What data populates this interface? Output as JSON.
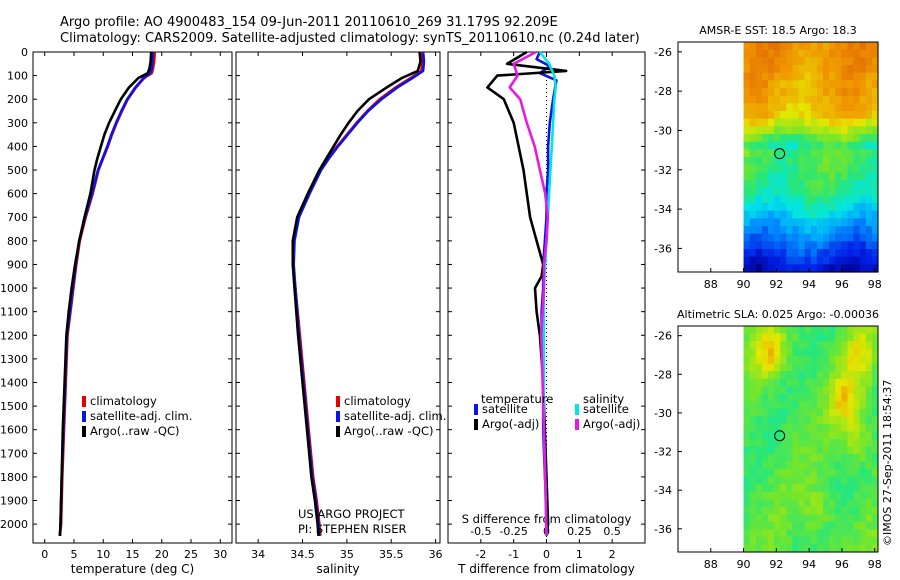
{
  "header": {
    "line1": "Argo profile: AO 4900483_154 09-Jun-2011 20110610_269 31.179S 92.209E",
    "line2": "Climatology: CARS2009. Satellite-adjusted climatology: synTS_20110610.nc (0.24d later)"
  },
  "colors": {
    "climatology": "#e60000",
    "satellite_adj": "#0a14e6",
    "argo": "#000000",
    "salinity_sat": "#00e6e6",
    "salinity_argo": "#e619e6"
  },
  "chart_data": [
    {
      "id": "temperature",
      "type": "line",
      "xlabel": "temperature (deg C)",
      "ylabel": "",
      "xlim": [
        -2,
        32
      ],
      "ylim": [
        2080,
        0
      ],
      "xticks": [
        0,
        5,
        10,
        15,
        20,
        25,
        30
      ],
      "xtick_labels": [
        "0",
        "5",
        "10",
        "15",
        "20",
        "25",
        "30"
      ],
      "yticks": [
        0,
        100,
        200,
        300,
        400,
        500,
        600,
        700,
        800,
        900,
        1000,
        1100,
        1200,
        1300,
        1400,
        1500,
        1600,
        1700,
        1800,
        1900,
        2000
      ],
      "ytick_labels": [
        "0",
        "100",
        "200",
        "300",
        "400",
        "500",
        "600",
        "700",
        "800",
        "900",
        "1000",
        "1100",
        "1200",
        "1300",
        "1400",
        "1500",
        "1600",
        "1700",
        "1800",
        "1900",
        "2000"
      ],
      "legend": [
        "climatology",
        "satellite-adj. clim.",
        "Argo(..raw -QC)"
      ],
      "series": [
        {
          "name": "climatology",
          "color_key": "climatology",
          "x": [
            18.8,
            18.7,
            18.5,
            18.3,
            17.0,
            15.6,
            14.2,
            13.2,
            12.3,
            11.5,
            10.8,
            10.0,
            9.2,
            8.2,
            7.0,
            6.0,
            5.4,
            4.9,
            4.4,
            3.9,
            3.6,
            3.3,
            3.0,
            2.8,
            2.6
          ],
          "y": [
            0,
            40,
            70,
            90,
            110,
            150,
            200,
            250,
            300,
            350,
            400,
            450,
            500,
            600,
            700,
            800,
            900,
            1000,
            1100,
            1200,
            1400,
            1600,
            1800,
            2000,
            2050
          ]
        },
        {
          "name": "satellite-adj. clim.",
          "color_key": "satellite_adj",
          "x": [
            18.5,
            18.4,
            18.3,
            18.0,
            16.9,
            15.5,
            14.1,
            13.1,
            12.2,
            11.4,
            10.7,
            9.9,
            9.1,
            8.1,
            6.9,
            5.9,
            5.3,
            4.8,
            4.3,
            3.8,
            3.5,
            3.2,
            2.9,
            2.7,
            2.6
          ],
          "y": [
            0,
            40,
            70,
            90,
            110,
            150,
            200,
            250,
            300,
            350,
            400,
            450,
            500,
            600,
            700,
            800,
            900,
            1000,
            1100,
            1200,
            1400,
            1600,
            1800,
            2000,
            2050
          ]
        },
        {
          "name": "Argo(..raw -QC)",
          "color_key": "argo",
          "x": [
            18.2,
            18.1,
            17.9,
            17.6,
            16.0,
            14.4,
            13.0,
            12.0,
            11.0,
            10.2,
            9.6,
            9.0,
            8.5,
            7.8,
            6.8,
            5.9,
            5.2,
            4.6,
            4.1,
            3.7,
            3.4,
            3.1,
            2.9,
            2.7,
            2.6
          ],
          "y": [
            0,
            40,
            70,
            90,
            110,
            150,
            200,
            250,
            300,
            350,
            400,
            450,
            500,
            600,
            700,
            800,
            900,
            1000,
            1100,
            1200,
            1400,
            1600,
            1800,
            2000,
            2050
          ]
        }
      ]
    },
    {
      "id": "salinity",
      "type": "line",
      "xlabel": "salinity",
      "ylabel": "",
      "xlim": [
        33.75,
        36.05
      ],
      "ylim": [
        2080,
        0
      ],
      "xticks": [
        34,
        34.5,
        35,
        35.5,
        36
      ],
      "xtick_labels": [
        "34",
        "34.5",
        "35",
        "35.5",
        "36"
      ],
      "legend": [
        "climatology",
        "satellite-adj. clim.",
        "Argo(..raw -QC)"
      ],
      "annotations": [
        "US ARGO PROJECT",
        "PI: STEPHEN RISER"
      ],
      "series": [
        {
          "name": "climatology",
          "color_key": "climatology",
          "x": [
            35.84,
            35.85,
            35.84,
            35.72,
            35.55,
            35.37,
            35.23,
            35.11,
            35.0,
            34.89,
            34.79,
            34.7,
            34.57,
            34.45,
            34.4,
            34.39,
            34.42,
            34.47,
            34.52,
            34.57,
            34.62,
            34.66,
            34.69,
            34.7
          ],
          "y": [
            0,
            40,
            80,
            110,
            150,
            200,
            250,
            300,
            350,
            400,
            450,
            500,
            600,
            700,
            800,
            900,
            1000,
            1200,
            1400,
            1600,
            1800,
            1900,
            2000,
            2050
          ]
        },
        {
          "name": "satellite-adj. clim.",
          "color_key": "satellite_adj",
          "x": [
            35.86,
            35.87,
            35.86,
            35.74,
            35.57,
            35.39,
            35.24,
            35.12,
            35.01,
            34.9,
            34.8,
            34.71,
            34.58,
            34.46,
            34.41,
            34.4,
            34.42,
            34.46,
            34.51,
            34.56,
            34.61,
            34.65,
            34.68,
            34.69
          ],
          "y": [
            0,
            40,
            80,
            110,
            150,
            200,
            250,
            300,
            350,
            400,
            450,
            500,
            600,
            700,
            800,
            900,
            1000,
            1200,
            1400,
            1600,
            1800,
            1900,
            2000,
            2050
          ]
        },
        {
          "name": "Argo(..raw -QC)",
          "color_key": "argo",
          "x": [
            35.82,
            35.83,
            35.8,
            35.62,
            35.45,
            35.25,
            35.12,
            35.02,
            34.93,
            34.85,
            34.77,
            34.69,
            34.56,
            34.44,
            34.39,
            34.39,
            34.41,
            34.45,
            34.5,
            34.55,
            34.6,
            34.64,
            34.67,
            34.68
          ],
          "y": [
            0,
            40,
            80,
            110,
            150,
            200,
            250,
            300,
            350,
            400,
            450,
            500,
            600,
            700,
            800,
            900,
            1000,
            1200,
            1400,
            1600,
            1800,
            1900,
            2000,
            2050
          ]
        }
      ]
    },
    {
      "id": "difference",
      "type": "line",
      "xlabel": "T difference from climatology",
      "top_label": "S difference from climatology",
      "xlim": [
        -3,
        3
      ],
      "ylim": [
        2080,
        0
      ],
      "xticks": [
        -2,
        -1,
        0,
        1,
        2
      ],
      "xtick_labels": [
        "-2",
        "-1",
        "0",
        "1",
        "2"
      ],
      "top_xtick_labels": [
        "-0.5",
        "-0.25",
        "0",
        "0.25",
        "0.5"
      ],
      "legend_headers": [
        "temperature",
        "salinity"
      ],
      "legend": [
        "satellite",
        "Argo(-adj)",
        "satellite",
        "Argo(-adj)"
      ],
      "series": [
        {
          "name": "temperature satellite",
          "color_key": "satellite_adj",
          "x": [
            -0.2,
            -0.3,
            0.1,
            -0.2,
            0.3,
            0.2,
            0.1,
            0.05,
            0.05,
            0.0,
            0.0,
            -0.05,
            -0.1,
            -0.1,
            -0.15,
            -0.15,
            -0.1,
            -0.1,
            -0.1,
            -0.05,
            0.0,
            0.0,
            0.0,
            0.0
          ],
          "y": [
            0,
            30,
            60,
            90,
            120,
            200,
            300,
            400,
            500,
            600,
            700,
            800,
            900,
            1000,
            1100,
            1200,
            1300,
            1400,
            1600,
            1800,
            1900,
            2000,
            2030,
            2050
          ]
        },
        {
          "name": "temperature Argo(-adj)",
          "color_key": "argo",
          "x": [
            -0.6,
            -1.2,
            0.6,
            -1.5,
            -1.8,
            -1.3,
            -1.0,
            -0.85,
            -0.7,
            -0.6,
            -0.5,
            -0.3,
            -0.2,
            -0.1,
            -0.15,
            -0.35,
            -0.3,
            -0.2,
            -0.1,
            -0.05,
            0.0,
            0.05,
            0.0
          ],
          "y": [
            0,
            50,
            80,
            100,
            150,
            200,
            300,
            400,
            500,
            600,
            700,
            800,
            850,
            900,
            950,
            1000,
            1100,
            1200,
            1400,
            1600,
            1800,
            2000,
            2050
          ]
        },
        {
          "name": "salinity satellite",
          "color_key": "salinity_sat",
          "x": [
            -0.05,
            0.02,
            0.06,
            0.07,
            0.06,
            0.05,
            0.04,
            0.03,
            0.02,
            0.01,
            0.0,
            -0.01,
            -0.02,
            -0.02,
            -0.02,
            -0.02,
            -0.02,
            -0.01,
            0.0
          ],
          "y": [
            0,
            50,
            100,
            150,
            200,
            300,
            400,
            500,
            600,
            700,
            800,
            900,
            1000,
            1100,
            1200,
            1400,
            1600,
            1800,
            2050
          ]
        },
        {
          "name": "salinity Argo(-adj)",
          "color_key": "salinity_argo",
          "x": [
            -0.08,
            -0.25,
            -0.22,
            -0.28,
            -0.2,
            -0.15,
            -0.09,
            -0.05,
            -0.01,
            0.01,
            0.0,
            -0.02,
            -0.02,
            -0.03,
            -0.04,
            -0.03,
            -0.02,
            -0.01,
            0.0
          ],
          "y": [
            0,
            50,
            100,
            150,
            200,
            300,
            400,
            500,
            600,
            700,
            800,
            900,
            1000,
            1100,
            1200,
            1400,
            1600,
            1800,
            2050
          ]
        }
      ]
    },
    {
      "id": "sst_map",
      "type": "heatmap",
      "title": "AMSR-E SST: 18.5 Argo: 18.3",
      "xlim": [
        86,
        98.2
      ],
      "ylim": [
        -37.2,
        -25.5
      ],
      "xticks": [
        88,
        90,
        92,
        94,
        96,
        98
      ],
      "xtick_labels": [
        "88",
        "90",
        "92",
        "94",
        "96",
        "98"
      ],
      "yticks": [
        -26,
        -28,
        -30,
        -32,
        -34,
        -36
      ],
      "ytick_labels": [
        "-26",
        "-28",
        "-30",
        "-32",
        "-34",
        "-36"
      ],
      "data_xlim": [
        90,
        98.2
      ],
      "marker": [
        92.2,
        -31.18
      ]
    },
    {
      "id": "sla_map",
      "type": "heatmap",
      "title": "Altimetric SLA: 0.025 Argo: -0.00036",
      "xlim": [
        86,
        98.2
      ],
      "ylim": [
        -37.2,
        -25.5
      ],
      "xticks": [
        88,
        90,
        92,
        94,
        96,
        98
      ],
      "xtick_labels": [
        "88",
        "90",
        "92",
        "94",
        "96",
        "98"
      ],
      "yticks": [
        -26,
        -28,
        -30,
        -32,
        -34,
        -36
      ],
      "ytick_labels": [
        "-26",
        "-28",
        "-30",
        "-32",
        "-34",
        "-36"
      ],
      "data_xlim": [
        90,
        98.2
      ],
      "marker": [
        92.2,
        -31.18
      ]
    }
  ],
  "footer": {
    "stamp": "©IMOS 27-Sep-2011 18:54:37"
  }
}
